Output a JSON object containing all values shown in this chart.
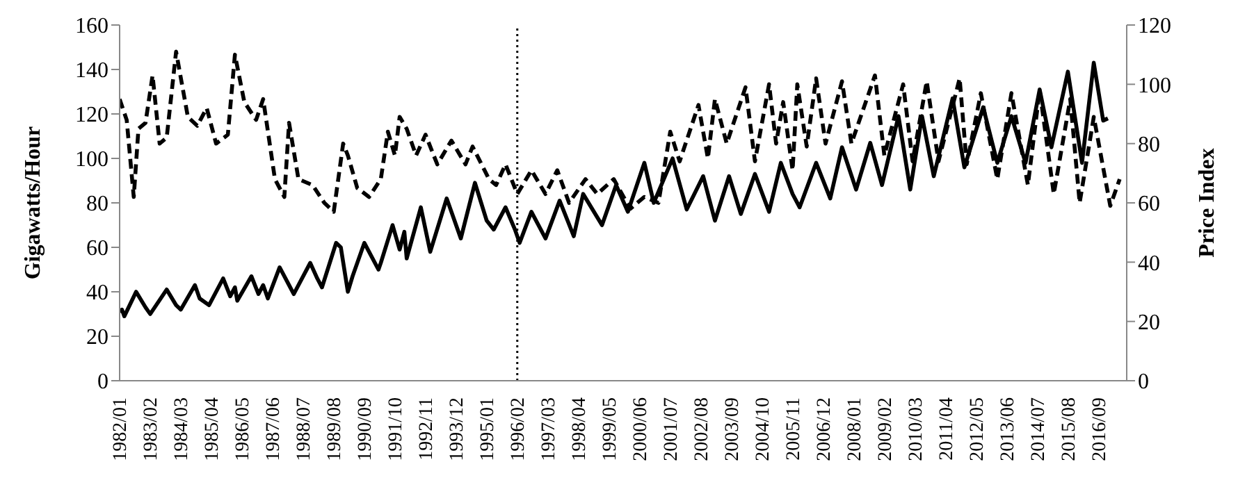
{
  "chart_data": {
    "type": "line",
    "ylabel": "Gigawatts/Hour",
    "y2label": "Price Index",
    "xlim": [
      "1982-01",
      "2017-09"
    ],
    "xticks": [
      {
        "value": "1982-01",
        "label": "1982/01"
      },
      {
        "value": "1983-02",
        "label": "1983/02"
      },
      {
        "value": "1984-03",
        "label": "1984/03"
      },
      {
        "value": "1985-04",
        "label": "1985/04"
      },
      {
        "value": "1986-05",
        "label": "1986/05"
      },
      {
        "value": "1987-06",
        "label": "1987/06"
      },
      {
        "value": "1988-07",
        "label": "1988/07"
      },
      {
        "value": "1989-08",
        "label": "1989/08"
      },
      {
        "value": "1990-09",
        "label": "1990/09"
      },
      {
        "value": "1991-10",
        "label": "1991/10"
      },
      {
        "value": "1992-11",
        "label": "1992/11"
      },
      {
        "value": "1993-12",
        "label": "1993/12"
      },
      {
        "value": "1995-01",
        "label": "1995/01"
      },
      {
        "value": "1996-02",
        "label": "1996/02"
      },
      {
        "value": "1997-03",
        "label": "1997/03"
      },
      {
        "value": "1998-04",
        "label": "1998/04"
      },
      {
        "value": "1999-05",
        "label": "1999/05"
      },
      {
        "value": "2000-06",
        "label": "2000/06"
      },
      {
        "value": "2001-07",
        "label": "2001/07"
      },
      {
        "value": "2002-08",
        "label": "2002/08"
      },
      {
        "value": "2003-09",
        "label": "2003/09"
      },
      {
        "value": "2004-10",
        "label": "2004/10"
      },
      {
        "value": "2005-11",
        "label": "2005/11"
      },
      {
        "value": "2006-12",
        "label": "2006/12"
      },
      {
        "value": "2008-01",
        "label": "2008/01"
      },
      {
        "value": "2009-02",
        "label": "2009/02"
      },
      {
        "value": "2010-03",
        "label": "2010/03"
      },
      {
        "value": "2011-04",
        "label": "2011/04"
      },
      {
        "value": "2012-05",
        "label": "2012/05"
      },
      {
        "value": "2013-06",
        "label": "2013/06"
      },
      {
        "value": "2014-07",
        "label": "2014/07"
      },
      {
        "value": "2015-08",
        "label": "2015/08"
      },
      {
        "value": "2016-09",
        "label": "2016/09"
      }
    ],
    "ylim": [
      0,
      160
    ],
    "yticks": [
      0,
      20,
      40,
      60,
      80,
      100,
      120,
      140,
      160
    ],
    "y2lim": [
      0,
      120
    ],
    "y2ticks": [
      0,
      20,
      40,
      60,
      80,
      100,
      120
    ],
    "grid": false,
    "marker": "none",
    "ref_lines": [
      {
        "axis": "x",
        "value": "1996-02",
        "color": "#000000",
        "line_style": "dotted"
      }
    ],
    "series": [
      {
        "color": "#000000",
        "line_style": "solid",
        "x": [
          "1982-01",
          "1982-02",
          "1982-03",
          "1982-08",
          "1982-12",
          "1983-02",
          "1983-09",
          "1984-01",
          "1984-03",
          "1984-09",
          "1984-11",
          "1985-03",
          "1985-09",
          "1985-12",
          "1986-02",
          "1986-03",
          "1986-09",
          "1986-12",
          "1987-02",
          "1987-04",
          "1987-09",
          "1988-01",
          "1988-03",
          "1988-10",
          "1989-01",
          "1989-03",
          "1989-09",
          "1989-11",
          "1990-02",
          "1990-04",
          "1990-09",
          "1991-03",
          "1991-04",
          "1991-09",
          "1991-12",
          "1992-02",
          "1992-03",
          "1992-09",
          "1993-01",
          "1993-08",
          "1994-02",
          "1994-08",
          "1995-01",
          "1995-04",
          "1995-09",
          "1996-01",
          "1996-03",
          "1996-08",
          "1997-02",
          "1997-08",
          "1998-02",
          "1998-06",
          "1999-02",
          "1999-08",
          "2000-01",
          "2000-08",
          "2000-12",
          "2001-08",
          "2002-02",
          "2002-09",
          "2003-02",
          "2003-08",
          "2004-01",
          "2004-07",
          "2005-01",
          "2005-06",
          "2005-11",
          "2006-02",
          "2006-09",
          "2007-03",
          "2007-08",
          "2008-02",
          "2008-08",
          "2009-01",
          "2009-08",
          "2010-01",
          "2010-06",
          "2010-11",
          "2011-07",
          "2011-12",
          "2012-08",
          "2013-02",
          "2013-08",
          "2014-02",
          "2014-08",
          "2015-01",
          "2015-08",
          "2016-02",
          "2016-07",
          "2016-11",
          "2017-01"
        ],
        "values": [
          31,
          32,
          29,
          40,
          33,
          30,
          41,
          34,
          32,
          43,
          37,
          34,
          46,
          38,
          42,
          36,
          47,
          39,
          43,
          37,
          51,
          43,
          39,
          53,
          46,
          42,
          62,
          60,
          40,
          47,
          62,
          50,
          53,
          70,
          59,
          67,
          55,
          78,
          58,
          82,
          64,
          89,
          72,
          68,
          78,
          68,
          62,
          76,
          64,
          81,
          65,
          84,
          70,
          88,
          76,
          98,
          80,
          100,
          77,
          92,
          72,
          92,
          75,
          93,
          76,
          98,
          84,
          78,
          98,
          82,
          105,
          86,
          107,
          88,
          119,
          86,
          119,
          92,
          127,
          96,
          123,
          98,
          119,
          98,
          131,
          105,
          139,
          98,
          143,
          117,
          118
        ]
      },
      {
        "color": "#000000",
        "line_style": "dashed",
        "axis": "y2",
        "x": [
          "1982-01",
          "1982-04",
          "1982-07",
          "1982-09",
          "1982-12",
          "1983-03",
          "1983-06",
          "1983-09",
          "1984-01",
          "1984-06",
          "1984-10",
          "1985-02",
          "1985-06",
          "1985-11",
          "1986-02",
          "1986-06",
          "1986-11",
          "1987-02",
          "1987-07",
          "1987-11",
          "1988-01",
          "1988-05",
          "1988-11",
          "1989-04",
          "1989-08",
          "1989-12",
          "1990-02",
          "1990-06",
          "1990-11",
          "1991-04",
          "1991-07",
          "1991-10",
          "1991-12",
          "1992-03",
          "1992-07",
          "1992-11",
          "1993-04",
          "1993-10",
          "1994-04",
          "1994-07",
          "1995-02",
          "1995-05",
          "1995-09",
          "1996-02",
          "1996-08",
          "1997-02",
          "1997-07",
          "1997-12",
          "1998-07",
          "1998-12",
          "1999-07",
          "2000-02",
          "2000-08",
          "2001-02",
          "2001-07",
          "2001-11",
          "2002-07",
          "2002-11",
          "2003-02",
          "2003-07",
          "2004-03",
          "2004-07",
          "2005-01",
          "2005-04",
          "2005-07",
          "2005-11",
          "2006-01",
          "2006-05",
          "2006-09",
          "2007-01",
          "2007-08",
          "2007-12",
          "2008-10",
          "2009-02",
          "2009-10",
          "2010-02",
          "2010-08",
          "2011-01",
          "2011-10",
          "2012-01",
          "2012-07",
          "2013-02",
          "2013-08",
          "2014-03",
          "2014-08",
          "2015-02",
          "2015-09",
          "2016-01",
          "2016-07",
          "2017-02",
          "2017-06"
        ],
        "values": [
          95,
          88,
          62,
          85,
          87,
          103,
          80,
          82,
          111,
          89,
          86,
          92,
          80,
          83,
          110,
          94,
          88,
          95,
          68,
          62,
          87,
          68,
          66,
          60,
          57,
          80,
          76,
          65,
          62,
          68,
          84,
          76,
          89,
          85,
          76,
          83,
          73,
          81,
          73,
          79,
          68,
          66,
          73,
          63,
          71,
          63,
          71,
          60,
          68,
          63,
          68,
          58,
          62,
          60,
          84,
          74,
          93,
          75,
          95,
          80,
          99,
          74,
          100,
          80,
          94,
          71,
          100,
          79,
          102,
          80,
          101,
          80,
          103,
          76,
          100,
          74,
          101,
          74,
          102,
          73,
          97,
          68,
          97,
          66,
          98,
          63,
          95,
          60,
          89,
          59,
          68
        ]
      }
    ]
  }
}
